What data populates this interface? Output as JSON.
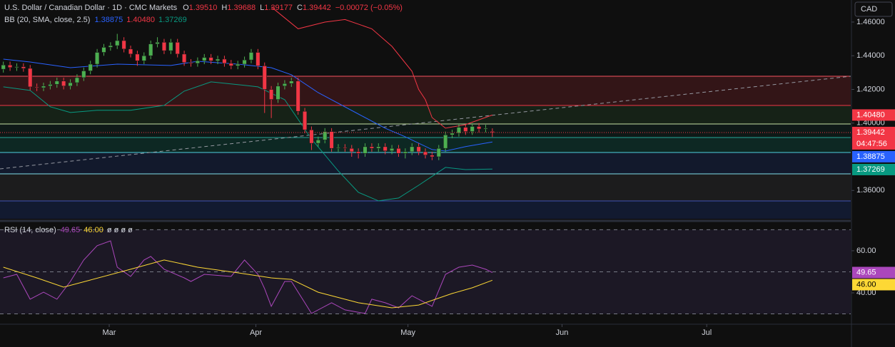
{
  "header": {
    "symbol": "U.S. Dollar / Canadian Dollar · 1D · CMC Markets",
    "ohlc": [
      {
        "label": "O",
        "value": "1.39510"
      },
      {
        "label": "H",
        "value": "1.39688"
      },
      {
        "label": "L",
        "value": "1.39177"
      },
      {
        "label": "C",
        "value": "1.39442"
      }
    ],
    "change": "−0.00072 (−0.05%)",
    "currency": "CAD",
    "countdown": "04:47:56"
  },
  "chart_data": [
    {
      "type": "candlestick",
      "title": "BB (20, SMA, close, 2.5)",
      "up_color": "#4caf50",
      "down_color": "#f23645",
      "x": [
        0,
        1,
        2,
        3,
        4,
        5,
        6,
        7,
        8,
        9,
        10,
        11,
        12,
        13,
        14,
        15,
        16,
        17,
        18,
        19,
        20,
        21,
        22,
        23,
        24,
        25,
        26,
        27,
        28,
        29,
        30,
        31,
        32,
        33,
        34,
        35,
        36,
        37,
        38,
        39,
        40,
        41,
        42,
        43,
        44,
        45,
        46,
        47,
        48,
        49,
        50,
        51,
        52,
        53,
        54,
        55,
        56,
        57,
        58,
        59,
        60,
        61,
        62,
        63,
        64,
        65,
        66,
        67,
        68,
        69,
        70,
        71,
        72,
        73
      ],
      "open": [
        1.432,
        1.4345,
        1.433,
        1.4335,
        1.4325,
        1.4215,
        1.421,
        1.422,
        1.423,
        1.425,
        1.422,
        1.424,
        1.427,
        1.431,
        1.435,
        1.442,
        1.445,
        1.446,
        1.449,
        1.444,
        1.441,
        1.437,
        1.44,
        1.447,
        1.448,
        1.443,
        1.448,
        1.441,
        1.436,
        1.4355,
        1.437,
        1.439,
        1.437,
        1.438,
        1.4355,
        1.434,
        1.435,
        1.4375,
        1.442,
        1.434,
        1.42,
        1.414,
        1.422,
        1.4235,
        1.425,
        1.407,
        1.396,
        1.388,
        1.39,
        1.395,
        1.385,
        1.3855,
        1.385,
        1.383,
        1.382,
        1.386,
        1.385,
        1.386,
        1.3835,
        1.385,
        1.382,
        1.383,
        1.386,
        1.383,
        1.381,
        1.38,
        1.385,
        1.393,
        1.394,
        1.3975,
        1.395,
        1.398,
        1.3965,
        1.3951
      ],
      "high": [
        1.4365,
        1.4365,
        1.4355,
        1.4355,
        1.4345,
        1.4235,
        1.424,
        1.425,
        1.427,
        1.427,
        1.426,
        1.429,
        1.433,
        1.437,
        1.444,
        1.447,
        1.448,
        1.453,
        1.451,
        1.446,
        1.443,
        1.442,
        1.449,
        1.451,
        1.45,
        1.45,
        1.45,
        1.443,
        1.438,
        1.439,
        1.441,
        1.441,
        1.44,
        1.44,
        1.4375,
        1.437,
        1.4395,
        1.444,
        1.444,
        1.436,
        1.422,
        1.424,
        1.4255,
        1.427,
        1.427,
        1.409,
        1.398,
        1.392,
        1.397,
        1.397,
        1.3875,
        1.3875,
        1.387,
        1.385,
        1.388,
        1.388,
        1.388,
        1.388,
        1.387,
        1.387,
        1.385,
        1.388,
        1.388,
        1.385,
        1.383,
        1.387,
        1.395,
        1.396,
        1.3995,
        1.3995,
        1.4,
        1.4,
        1.399,
        1.39688
      ],
      "low": [
        1.43,
        1.431,
        1.431,
        1.4305,
        1.4195,
        1.419,
        1.419,
        1.42,
        1.421,
        1.42,
        1.42,
        1.422,
        1.425,
        1.429,
        1.433,
        1.44,
        1.443,
        1.444,
        1.442,
        1.439,
        1.434,
        1.435,
        1.438,
        1.445,
        1.441,
        1.441,
        1.439,
        1.434,
        1.4335,
        1.4335,
        1.435,
        1.435,
        1.435,
        1.4335,
        1.432,
        1.432,
        1.433,
        1.4355,
        1.432,
        1.406,
        1.403,
        1.412,
        1.42,
        1.4215,
        1.405,
        1.394,
        1.384,
        1.386,
        1.388,
        1.383,
        1.383,
        1.383,
        1.38,
        1.379,
        1.38,
        1.383,
        1.383,
        1.3815,
        1.3815,
        1.38,
        1.379,
        1.381,
        1.381,
        1.379,
        1.378,
        1.378,
        1.383,
        1.391,
        1.392,
        1.393,
        1.393,
        1.3945,
        1.3945,
        1.39177
      ],
      "close": [
        1.4345,
        1.433,
        1.4335,
        1.4325,
        1.4215,
        1.421,
        1.422,
        1.423,
        1.425,
        1.422,
        1.424,
        1.427,
        1.431,
        1.435,
        1.442,
        1.445,
        1.446,
        1.449,
        1.444,
        1.441,
        1.437,
        1.44,
        1.447,
        1.448,
        1.443,
        1.448,
        1.441,
        1.436,
        1.4355,
        1.437,
        1.439,
        1.437,
        1.438,
        1.4355,
        1.434,
        1.435,
        1.4375,
        1.442,
        1.434,
        1.42,
        1.414,
        1.422,
        1.4235,
        1.425,
        1.407,
        1.396,
        1.388,
        1.39,
        1.395,
        1.385,
        1.3855,
        1.385,
        1.383,
        1.382,
        1.386,
        1.385,
        1.386,
        1.3835,
        1.385,
        1.382,
        1.383,
        1.386,
        1.383,
        1.381,
        1.38,
        1.385,
        1.393,
        1.394,
        1.3975,
        1.395,
        1.398,
        1.3965,
        1.397,
        1.39442
      ],
      "series": [
        {
          "color": "#2962ff",
          "x": [
            0,
            4,
            10,
            17,
            25,
            29,
            35,
            40,
            43,
            47,
            53,
            57,
            60,
            64,
            66,
            69,
            73
          ],
          "values": [
            1.438,
            1.4363,
            1.4329,
            1.435,
            1.4342,
            1.4367,
            1.435,
            1.4329,
            1.4287,
            1.4181,
            1.4054,
            1.397,
            1.3919,
            1.3843,
            1.3834,
            1.386,
            1.38875
          ],
          "value_label": "1.38875"
        },
        {
          "color": "#f23645",
          "x": [
            40,
            44,
            48,
            51,
            55,
            58,
            61,
            62,
            63,
            64,
            66,
            69,
            73
          ],
          "values": [
            1.469,
            1.456,
            1.46,
            1.4615,
            1.456,
            1.4456,
            1.4308,
            1.42,
            1.4139,
            1.4033,
            1.397,
            1.3991,
            1.4048
          ],
          "value_label": "1.40480"
        },
        {
          "color": "#089981",
          "x": [
            0,
            4,
            7,
            10,
            14,
            19,
            24,
            27,
            31,
            36,
            38,
            42,
            46,
            50,
            53,
            56,
            59,
            62,
            66,
            69,
            73
          ],
          "values": [
            1.4215,
            1.4194,
            1.4097,
            1.4063,
            1.4076,
            1.4076,
            1.4105,
            1.419,
            1.4245,
            1.4224,
            1.4215,
            1.4139,
            1.3906,
            1.3716,
            1.3589,
            1.3538,
            1.3555,
            1.3631,
            1.3737,
            1.3724,
            1.37269
          ],
          "value_label": "1.37269"
        }
      ],
      "xlim": [
        -0.5,
        126.5
      ],
      "xticks": [
        {
          "value": 15.8,
          "label": "Mar"
        },
        {
          "value": 37.7,
          "label": "Apr"
        },
        {
          "value": 60.4,
          "label": "May"
        },
        {
          "value": 83.4,
          "label": "Jun"
        },
        {
          "value": 105,
          "label": "Jul"
        }
      ],
      "ylim": [
        1.3432,
        1.4731
      ],
      "yticks": [
        {
          "value": 1.36,
          "label": "1.36000"
        },
        {
          "value": 1.4,
          "label": "1.40000"
        },
        {
          "value": 1.42,
          "label": "1.42000"
        },
        {
          "value": 1.44,
          "label": "1.44000"
        },
        {
          "value": 1.46,
          "label": "1.46000"
        }
      ]
    },
    {
      "type": "line",
      "title": "RSI (14, close)",
      "placeholders": "ø ø ø ø",
      "series": [
        {
          "color": "#ab47bc",
          "x": [
            0,
            2,
            4,
            6,
            8,
            10,
            12,
            14,
            16,
            17,
            19,
            21,
            22,
            24,
            27,
            28,
            30,
            34,
            36,
            38,
            39,
            40,
            42,
            43,
            45,
            46,
            49,
            51,
            54,
            55,
            57,
            59,
            61,
            64,
            66,
            68,
            70,
            72,
            73
          ],
          "values": [
            47.1,
            48.8,
            37,
            40.3,
            37,
            45.4,
            55.6,
            62.4,
            64.7,
            52.2,
            47.8,
            55.6,
            57.3,
            51.2,
            47.1,
            45.4,
            48.8,
            47.8,
            55.6,
            48.8,
            42,
            33.6,
            45.4,
            45.4,
            35.3,
            30.2,
            35.3,
            31.9,
            30.2,
            37,
            35.3,
            32.9,
            38.6,
            33.6,
            48.8,
            52.2,
            53.2,
            51.2,
            49.65
          ],
          "value_label": "49.65"
        },
        {
          "color": "#fdd835",
          "x": [
            0,
            5,
            9,
            13,
            19,
            24,
            29,
            35,
            40,
            43,
            47,
            53,
            58,
            62,
            67,
            70,
            73
          ],
          "values": [
            52.2,
            47.1,
            42.7,
            46.1,
            51.2,
            55.6,
            52.2,
            49.5,
            47.1,
            46.4,
            40.3,
            35.3,
            32.9,
            34.2,
            39.7,
            42.4,
            46.0
          ],
          "value_label": "46.00"
        }
      ],
      "xlim": [
        -0.5,
        126.5
      ],
      "ylim": [
        25.1,
        72.5
      ],
      "yticks": [
        {
          "value": 60,
          "label": "60.00"
        },
        {
          "value": 40,
          "label": "40.00"
        }
      ],
      "levels": [
        70,
        50,
        30
      ]
    }
  ]
}
